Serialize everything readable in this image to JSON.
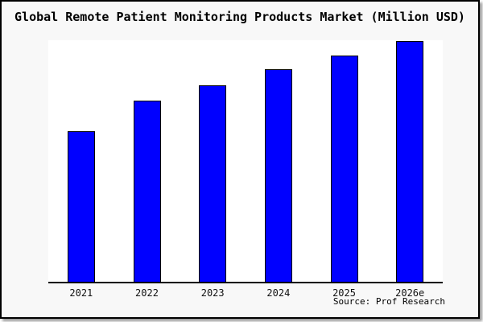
{
  "window": {
    "background_color": "#f8f8f8",
    "border_color": "#000000",
    "shadow_color": "#999999"
  },
  "chart": {
    "title": "Global Remote Patient Monitoring Products Market (Million USD)",
    "source": "Source: Prof Research"
  },
  "chart_data": {
    "type": "bar",
    "title": "Global Remote Patient Monitoring Products Market (Million USD)",
    "categories": [
      "2021",
      "2022",
      "2023",
      "2024",
      "2025",
      "2026e"
    ],
    "values": [
      62.7,
      75.3,
      81.5,
      88.0,
      93.9,
      100.0
    ],
    "values_note": "y-axis has no tick labels; values are bar heights normalized so 2026e = 100",
    "bar_height_pct_of_plot": [
      62.5,
      75.0,
      81.3,
      88.0,
      93.7,
      99.7
    ],
    "xlabel": "",
    "ylabel": "",
    "ylim_visible_labels": false,
    "grid": false,
    "legend": false,
    "annotation": "Source: Prof Research",
    "colors": {
      "bar_fill": "#0000ff",
      "bar_border": "#000000",
      "plot_background": "#ffffff",
      "panel_background": "#f8f8f8",
      "text": "#000000"
    }
  }
}
